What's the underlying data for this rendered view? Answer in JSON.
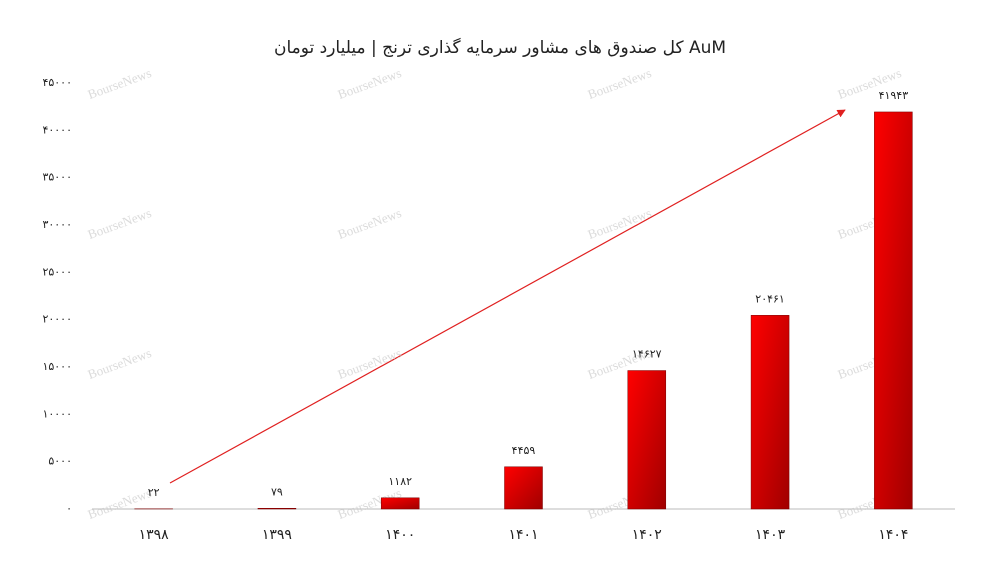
{
  "chart_data": {
    "type": "bar",
    "title": "AuM کل صندوق های مشاور سرمایه گذاری ترنج | میلیارد تومان",
    "watermark": "BourseNews",
    "categories": [
      "۱۳۹۸",
      "۱۳۹۹",
      "۱۴۰۰",
      "۱۴۰۱",
      "۱۴۰۲",
      "۱۴۰۳",
      "۱۴۰۴"
    ],
    "values": [
      22,
      79,
      1182,
      4459,
      14627,
      20461,
      41943
    ],
    "value_labels": [
      "۲۲",
      "۷۹",
      "۱۱۸۲",
      "۴۴۵۹",
      "۱۴۶۲۷",
      "۲۰۴۶۱",
      "۴۱۹۴۳"
    ],
    "color": "#ff0000",
    "ylim": [
      0,
      45000
    ],
    "yticks": [
      {
        "value": 0,
        "label": "۰"
      },
      {
        "value": 5000,
        "label": "۵۰۰۰"
      },
      {
        "value": 10000,
        "label": "۱۰۰۰۰"
      },
      {
        "value": 15000,
        "label": "۱۵۰۰۰"
      },
      {
        "value": 20000,
        "label": "۲۰۰۰۰"
      },
      {
        "value": 25000,
        "label": "۲۵۰۰۰"
      },
      {
        "value": 30000,
        "label": "۳۰۰۰۰"
      },
      {
        "value": 35000,
        "label": "۳۵۰۰۰"
      },
      {
        "value": 40000,
        "label": "۴۰۰۰۰"
      },
      {
        "value": 45000,
        "label": "۴۵۰۰۰"
      }
    ],
    "grid": false
  }
}
